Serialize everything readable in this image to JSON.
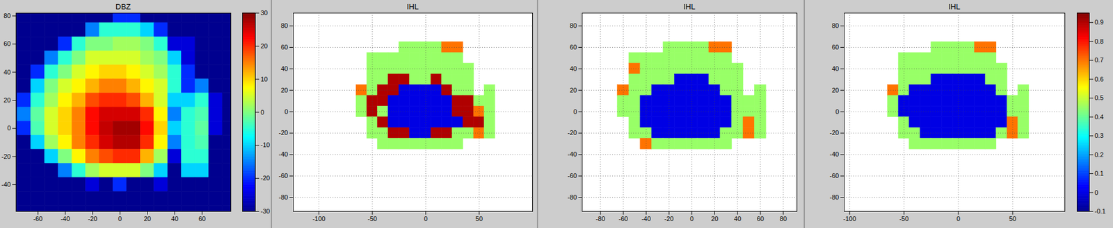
{
  "chart_data": [
    {
      "type": "heatmap",
      "title": "DBZ",
      "x": [
        -80,
        -70,
        -60,
        -50,
        -40,
        -30,
        -20,
        -10,
        0,
        10,
        20,
        30,
        40,
        50,
        60,
        70,
        80
      ],
      "y": [
        80,
        70,
        60,
        50,
        40,
        30,
        20,
        10,
        0,
        -10,
        -20,
        -30,
        -40,
        -50,
        -60
      ],
      "z": [
        [
          -30,
          -30,
          -30,
          -30,
          -30,
          -30,
          -30,
          -30,
          -20,
          -20,
          -30,
          -30,
          -30,
          -30,
          -30,
          -30,
          -30
        ],
        [
          -30,
          -30,
          -30,
          -30,
          -30,
          -30,
          -15,
          -5,
          -5,
          -5,
          -10,
          -20,
          -30,
          -30,
          -30,
          -30,
          -30
        ],
        [
          -30,
          -30,
          -30,
          -30,
          -20,
          -5,
          0,
          0,
          2,
          2,
          0,
          -5,
          -25,
          -25,
          -30,
          -30,
          -30
        ],
        [
          -30,
          -30,
          -30,
          -15,
          -5,
          0,
          5,
          5,
          5,
          5,
          2,
          0,
          -10,
          -25,
          -30,
          -30,
          -30
        ],
        [
          -30,
          -30,
          -20,
          -5,
          0,
          5,
          8,
          10,
          10,
          8,
          5,
          2,
          -5,
          -20,
          -30,
          -30,
          -30
        ],
        [
          -30,
          -30,
          -10,
          0,
          5,
          8,
          12,
          15,
          15,
          12,
          8,
          5,
          -5,
          -20,
          -15,
          -30,
          -30
        ],
        [
          -30,
          -20,
          -5,
          2,
          8,
          12,
          18,
          20,
          20,
          18,
          12,
          5,
          -10,
          -10,
          -5,
          -25,
          -30
        ],
        [
          -30,
          -15,
          -2,
          5,
          10,
          15,
          22,
          25,
          25,
          25,
          20,
          8,
          -15,
          -5,
          -3,
          -25,
          -30
        ],
        [
          -30,
          -20,
          -3,
          5,
          10,
          15,
          22,
          26,
          28,
          28,
          22,
          10,
          -10,
          -5,
          -2,
          -25,
          -30
        ],
        [
          -30,
          -30,
          -10,
          2,
          8,
          15,
          20,
          25,
          27,
          27,
          20,
          8,
          -15,
          -5,
          -3,
          -30,
          -30
        ],
        [
          -30,
          -30,
          -30,
          -10,
          0,
          8,
          15,
          18,
          20,
          20,
          12,
          2,
          -25,
          -5,
          -5,
          -30,
          -30
        ],
        [
          -30,
          -30,
          -30,
          -30,
          -15,
          -5,
          2,
          5,
          5,
          5,
          0,
          -10,
          -30,
          -10,
          -10,
          -30,
          -30
        ],
        [
          -30,
          -30,
          -30,
          -30,
          -30,
          -30,
          -25,
          -30,
          -20,
          -30,
          -30,
          -25,
          -30,
          -30,
          -30,
          -30,
          -30
        ],
        [
          -30,
          -30,
          -30,
          -30,
          -30,
          -30,
          -30,
          -30,
          -30,
          -30,
          -30,
          -30,
          -30,
          -30,
          -30,
          -30,
          -30
        ],
        [
          -30,
          -30,
          -30,
          -30,
          -30,
          -30,
          -30,
          -30,
          -30,
          -30,
          -30,
          -30,
          -30,
          -30,
          -30,
          -30,
          -30
        ]
      ],
      "xlim": [
        -76,
        81
      ],
      "ylim": [
        -59,
        82
      ],
      "xticks": [
        -60,
        -40,
        -20,
        0,
        20,
        40,
        60
      ],
      "yticks": [
        -40,
        -20,
        0,
        20,
        40,
        60,
        80
      ],
      "grid": false,
      "colorbar": {
        "range": [
          -30,
          30
        ],
        "ticks": [
          -30,
          -20,
          -10,
          0,
          10,
          20,
          30
        ]
      }
    },
    {
      "type": "heatmap",
      "title": "IHL",
      "x": [
        -60,
        -50,
        -40,
        -30,
        -20,
        -10,
        0,
        10,
        20,
        30,
        40,
        50,
        60
      ],
      "y": [
        60,
        50,
        40,
        30,
        20,
        10,
        0,
        -10,
        -20,
        -30
      ],
      "z": [
        [
          null,
          null,
          null,
          null,
          0.45,
          0.45,
          0.45,
          0.45,
          0.7,
          0.7,
          null,
          null,
          null
        ],
        [
          null,
          0.45,
          0.45,
          0.45,
          0.45,
          0.45,
          0.45,
          0.45,
          0.45,
          0.45,
          null,
          null,
          null
        ],
        [
          null,
          0.45,
          0.45,
          0.45,
          0.45,
          0.45,
          0.45,
          0.45,
          0.45,
          0.45,
          0.45,
          null,
          null
        ],
        [
          null,
          0.45,
          0.45,
          0.9,
          0.9,
          0.45,
          0.45,
          0.9,
          0.45,
          0.45,
          0.45,
          null,
          null
        ],
        [
          0.7,
          0.45,
          0.9,
          0.9,
          0,
          0,
          0,
          0,
          0.9,
          0.45,
          0.45,
          null,
          0.45
        ],
        [
          0.45,
          0.9,
          0.9,
          0,
          0,
          0,
          0,
          0,
          0,
          0.9,
          0.9,
          0.45,
          0.45
        ],
        [
          0.45,
          0.9,
          0.45,
          0,
          0,
          0,
          0,
          0,
          0,
          0.9,
          0.9,
          0.7,
          0.45
        ],
        [
          null,
          0.45,
          0.9,
          0,
          0,
          0,
          0,
          0,
          0,
          0,
          0.9,
          0.9,
          0.45
        ],
        [
          null,
          0.45,
          0.45,
          0.9,
          0.9,
          0,
          0,
          0.9,
          0.9,
          0.45,
          0.45,
          0.7,
          0.45
        ],
        [
          null,
          null,
          0.45,
          0.45,
          0.45,
          0.45,
          0.45,
          0.45,
          0.45,
          0.45,
          null,
          null,
          null
        ]
      ],
      "xlim": [
        -124,
        100
      ],
      "ylim": [
        -93,
        92
      ],
      "xticks": [
        -100,
        -50,
        0,
        50
      ],
      "yticks": [
        -80,
        -60,
        -40,
        -20,
        0,
        20,
        40,
        60,
        80
      ],
      "grid": true,
      "zlim": [
        -0.1,
        0.95
      ]
    },
    {
      "type": "heatmap",
      "title": "IHL",
      "x": [
        -60,
        -50,
        -40,
        -30,
        -20,
        -10,
        0,
        10,
        20,
        30,
        40,
        50,
        60
      ],
      "y": [
        60,
        50,
        40,
        30,
        20,
        10,
        0,
        -10,
        -20,
        -30
      ],
      "z": [
        [
          null,
          null,
          null,
          null,
          0.45,
          0.45,
          0.45,
          0.45,
          0.7,
          0.7,
          null,
          null,
          null
        ],
        [
          null,
          0.45,
          0.45,
          0.45,
          0.45,
          0.45,
          0.45,
          0.45,
          0.45,
          0.45,
          null,
          null,
          null
        ],
        [
          null,
          0.7,
          0.45,
          0.45,
          0.45,
          0.45,
          0.45,
          0.45,
          0.45,
          0.45,
          0.45,
          null,
          null
        ],
        [
          null,
          0.45,
          0.45,
          0.45,
          0.45,
          0,
          0,
          0,
          0.45,
          0.45,
          0.45,
          null,
          null
        ],
        [
          0.7,
          0.45,
          0.45,
          0,
          0,
          0,
          0,
          0,
          0,
          0.45,
          0.45,
          null,
          0.45
        ],
        [
          0.45,
          0.45,
          0,
          0,
          0,
          0,
          0,
          0,
          0,
          0,
          0.45,
          0.45,
          0.45
        ],
        [
          0.45,
          0.45,
          0,
          0,
          0,
          0,
          0,
          0,
          0,
          0,
          0.45,
          0.45,
          0.45
        ],
        [
          null,
          0.45,
          0,
          0,
          0,
          0,
          0,
          0,
          0,
          0,
          0.45,
          0.7,
          0.45
        ],
        [
          null,
          0.45,
          0.45,
          0,
          0,
          0,
          0,
          0,
          0,
          0.45,
          0.45,
          0.7,
          0.45
        ],
        [
          null,
          null,
          0.7,
          0.45,
          0.45,
          0.45,
          0.45,
          0.45,
          0.45,
          0.45,
          null,
          null,
          null
        ]
      ],
      "xlim": [
        -96,
        92
      ],
      "ylim": [
        -93,
        92
      ],
      "xticks": [
        -80,
        -60,
        -40,
        -20,
        0,
        20,
        40,
        60,
        80
      ],
      "yticks": [
        -80,
        -60,
        -40,
        -20,
        0,
        20,
        40,
        60,
        80
      ],
      "grid": true,
      "zlim": [
        -0.1,
        0.95
      ]
    },
    {
      "type": "heatmap",
      "title": "IHL",
      "x": [
        -60,
        -50,
        -40,
        -30,
        -20,
        -10,
        0,
        10,
        20,
        30,
        40,
        50,
        60
      ],
      "y": [
        60,
        50,
        40,
        30,
        20,
        10,
        0,
        -10,
        -20,
        -30
      ],
      "z": [
        [
          null,
          null,
          null,
          null,
          0.45,
          0.45,
          0.45,
          0.45,
          0.7,
          0.7,
          null,
          null,
          null
        ],
        [
          null,
          0.45,
          0.45,
          0.45,
          0.45,
          0.45,
          0.45,
          0.45,
          0.45,
          0.45,
          null,
          null,
          null
        ],
        [
          null,
          0.45,
          0.45,
          0.45,
          0.45,
          0.45,
          0.45,
          0.45,
          0.45,
          0.45,
          0.45,
          null,
          null
        ],
        [
          null,
          0.45,
          0.45,
          0.45,
          0,
          0,
          0,
          0,
          0,
          0.45,
          0.45,
          null,
          null
        ],
        [
          0.7,
          0.45,
          0,
          0,
          0,
          0,
          0,
          0,
          0,
          0,
          0.45,
          null,
          0.45
        ],
        [
          0.45,
          0,
          0,
          0,
          0,
          0,
          0,
          0,
          0,
          0,
          0,
          0.45,
          0.45
        ],
        [
          0.45,
          0,
          0,
          0,
          0,
          0,
          0,
          0,
          0,
          0,
          0,
          0.45,
          0.45
        ],
        [
          null,
          0.45,
          0,
          0,
          0,
          0,
          0,
          0,
          0,
          0,
          0,
          0.7,
          0.45
        ],
        [
          null,
          0.45,
          0.45,
          0,
          0,
          0,
          0,
          0,
          0,
          0,
          0.45,
          0.7,
          0.45
        ],
        [
          null,
          null,
          0.45,
          0.45,
          0.45,
          0.45,
          0.45,
          0.45,
          0.45,
          0.45,
          null,
          null,
          null
        ]
      ],
      "xlim": [
        -105,
        98
      ],
      "ylim": [
        -93,
        92
      ],
      "xticks": [
        -100,
        -50,
        0,
        50
      ],
      "yticks": [
        -80,
        -60,
        -40,
        -20,
        0,
        20,
        40,
        60,
        80
      ],
      "grid": true,
      "colorbar": {
        "range": [
          -0.1,
          0.95
        ],
        "ticks": [
          -0.1,
          0,
          0.1,
          0.2,
          0.3,
          0.4,
          0.5,
          0.6,
          0.7,
          0.8,
          0.9
        ]
      }
    }
  ]
}
